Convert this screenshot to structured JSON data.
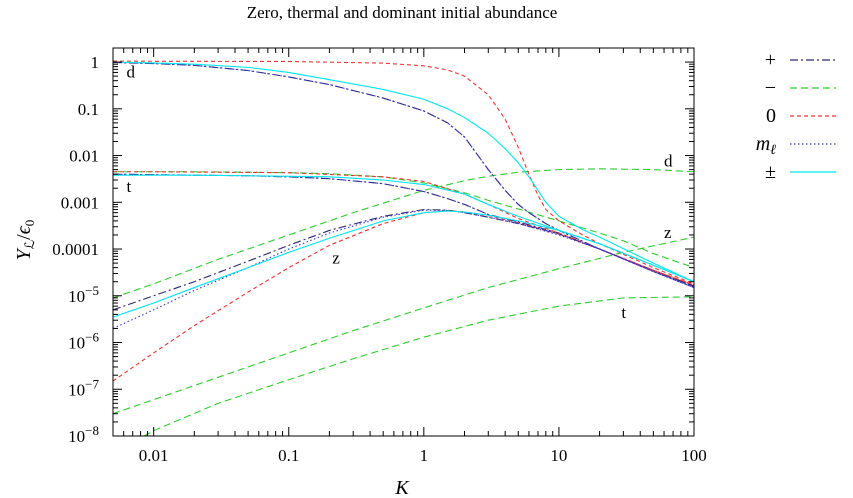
{
  "chart_data": {
    "type": "line",
    "title": "Zero, thermal and dominant initial abundance",
    "xlabel": "K",
    "ylabel": "Y_L / ε_0",
    "xscale": "log",
    "yscale": "log",
    "xlim": [
      0.005,
      100
    ],
    "ylim": [
      1e-08,
      2
    ],
    "xticks": [
      {
        "value": 0.01,
        "label": "0.01"
      },
      {
        "value": 0.1,
        "label": "0.1"
      },
      {
        "value": 1,
        "label": "1"
      },
      {
        "value": 10,
        "label": "10"
      },
      {
        "value": 100,
        "label": "100"
      }
    ],
    "yticks": [
      {
        "value": 1,
        "label": "1",
        "mant": "1",
        "exp": ""
      },
      {
        "value": 0.1,
        "label": "0.1",
        "mant": "0.1",
        "exp": ""
      },
      {
        "value": 0.01,
        "label": "0.01",
        "mant": "0.01",
        "exp": ""
      },
      {
        "value": 0.001,
        "label": "0.001",
        "mant": "0.001",
        "exp": ""
      },
      {
        "value": 0.0001,
        "label": "0.0001",
        "mant": "0.0001",
        "exp": ""
      },
      {
        "value": 1e-05,
        "label": "10-5",
        "mant": "10",
        "exp": "−5"
      },
      {
        "value": 1e-06,
        "label": "10-6",
        "mant": "10",
        "exp": "−6"
      },
      {
        "value": 1e-07,
        "label": "10-7",
        "mant": "10",
        "exp": "−7"
      },
      {
        "value": 1e-08,
        "label": "10-8",
        "mant": "10",
        "exp": "−8"
      }
    ],
    "legend_position": "outside-right",
    "series": [
      {
        "name": "plus-dominant",
        "legend": "+",
        "color": "#2a2a6e",
        "dash": "8,3,2,3",
        "x": [
          0.005,
          0.01,
          0.02,
          0.05,
          0.1,
          0.2,
          0.5,
          1,
          1.5,
          2,
          3,
          4,
          5,
          6,
          8,
          10,
          20,
          50,
          100
        ],
        "y": [
          0.98,
          0.93,
          0.85,
          0.66,
          0.48,
          0.33,
          0.17,
          0.09,
          0.05,
          0.025,
          0.005,
          0.0018,
          0.0009,
          0.0006,
          0.00035,
          0.00025,
          0.0001,
          3.5e-05,
          1.6e-05
        ]
      },
      {
        "name": "plus-thermal",
        "legend": "",
        "color": "#2a2a6e",
        "dash": "8,3,2,3",
        "x": [
          0.005,
          0.01,
          0.02,
          0.05,
          0.1,
          0.2,
          0.5,
          1,
          1.5,
          2,
          3,
          5,
          10,
          20,
          50,
          100
        ],
        "y": [
          0.004,
          0.0039,
          0.0038,
          0.0037,
          0.0035,
          0.0032,
          0.0025,
          0.0017,
          0.0012,
          0.0009,
          0.00055,
          0.00038,
          0.00022,
          0.0001,
          3.5e-05,
          1.6e-05
        ]
      },
      {
        "name": "plus-zero",
        "legend": "",
        "color": "#2a2a6e",
        "dash": "8,3,2,3",
        "x": [
          0.005,
          0.01,
          0.02,
          0.05,
          0.1,
          0.2,
          0.5,
          1,
          1.5,
          2,
          3,
          5,
          10,
          20,
          50,
          100
        ],
        "y": [
          5e-06,
          1e-05,
          2e-05,
          5.5e-05,
          0.00012,
          0.00025,
          0.0005,
          0.0007,
          0.00068,
          0.0006,
          0.00048,
          0.00035,
          0.00021,
          0.0001,
          3.5e-05,
          1.6e-05
        ]
      },
      {
        "name": "minus-thermal",
        "legend": "−",
        "color": "#2ecc2e",
        "dash": "7,4",
        "x": [
          0.005,
          0.01,
          0.02,
          0.05,
          0.1,
          0.2,
          0.5,
          1,
          2,
          3,
          5,
          10,
          20,
          30,
          50,
          100
        ],
        "y": [
          0.0045,
          0.0045,
          0.0045,
          0.0044,
          0.0043,
          0.0041,
          0.0035,
          0.0026,
          0.0016,
          0.0011,
          0.00072,
          0.0004,
          0.00022,
          0.00015,
          8e-05,
          4e-05
        ]
      },
      {
        "name": "minus-dominant",
        "legend": "",
        "color": "#2ecc2e",
        "dash": "7,4",
        "x": [
          0.005,
          0.01,
          0.03,
          0.1,
          0.3,
          1,
          2,
          3,
          5,
          10,
          20,
          50,
          100
        ],
        "y": [
          9e-06,
          1.8e-05,
          6e-05,
          0.0002,
          0.0006,
          0.0018,
          0.0029,
          0.0036,
          0.0044,
          0.005,
          0.0052,
          0.005,
          0.0045
        ]
      },
      {
        "name": "minus-zero",
        "legend": "",
        "color": "#2ecc2e",
        "dash": "7,4",
        "x": [
          0.005,
          0.01,
          0.03,
          0.1,
          0.3,
          1,
          3,
          10,
          30,
          100
        ],
        "y": [
          3e-08,
          6e-08,
          1.8e-07,
          6e-07,
          1.8e-06,
          5.5e-06,
          1.5e-05,
          3.8e-05,
          8.5e-05,
          0.00018
        ]
      },
      {
        "name": "minus-low",
        "legend": "",
        "color": "#2ecc2e",
        "dash": "7,4",
        "x": [
          0.0085,
          0.01,
          0.03,
          0.1,
          0.3,
          1,
          3,
          10,
          30,
          100
        ],
        "y": [
          1e-08,
          1.3e-08,
          5e-08,
          1.6e-07,
          4.5e-07,
          1.3e-06,
          3e-06,
          6e-06,
          9e-06,
          9.5e-06
        ]
      },
      {
        "name": "zero-dominant",
        "legend": "0",
        "color": "#ee3333",
        "dash": "4,3",
        "x": [
          0.005,
          0.01,
          0.1,
          0.5,
          1,
          1.5,
          2,
          3,
          4,
          5,
          6,
          7,
          8,
          10,
          15,
          20,
          50,
          100
        ],
        "y": [
          1.05,
          1.04,
          1.03,
          0.95,
          0.83,
          0.68,
          0.5,
          0.2,
          0.06,
          0.015,
          0.004,
          0.0014,
          0.0007,
          0.0004,
          0.0002,
          0.00013,
          4e-05,
          1.8e-05
        ]
      },
      {
        "name": "zero-thermal",
        "legend": "",
        "color": "#ee3333",
        "dash": "4,3",
        "x": [
          0.005,
          0.01,
          0.1,
          0.5,
          1,
          2,
          3,
          5,
          10,
          20,
          50,
          100
        ],
        "y": [
          0.0045,
          0.0045,
          0.0043,
          0.0035,
          0.0028,
          0.0015,
          0.0009,
          0.00045,
          0.00022,
          0.0001,
          3.5e-05,
          1.7e-05
        ]
      },
      {
        "name": "zero-zero",
        "legend": "",
        "color": "#ee3333",
        "dash": "4,3",
        "x": [
          0.005,
          0.01,
          0.02,
          0.05,
          0.1,
          0.2,
          0.5,
          1,
          1.5,
          2,
          3,
          5,
          10,
          20,
          50,
          100
        ],
        "y": [
          1.5e-07,
          6e-07,
          2.3e-06,
          1.2e-05,
          4e-05,
          0.00012,
          0.00035,
          0.0006,
          0.00066,
          0.00062,
          0.00052,
          0.00037,
          0.00021,
          0.0001,
          3.5e-05,
          1.7e-05
        ]
      },
      {
        "name": "mell-dominant",
        "legend": "m_ℓ",
        "color": "#3333cc",
        "dash": "1.5,2.5",
        "x": [
          0.005,
          0.01,
          0.02,
          0.05,
          0.1,
          0.2,
          0.5,
          1,
          1.5,
          2,
          3,
          4,
          5,
          6,
          8,
          10,
          20,
          50,
          100
        ],
        "y": [
          0.98,
          0.93,
          0.85,
          0.66,
          0.48,
          0.33,
          0.17,
          0.09,
          0.05,
          0.025,
          0.005,
          0.0018,
          0.0009,
          0.0006,
          0.00035,
          0.00025,
          0.0001,
          3.3e-05,
          1.5e-05
        ]
      },
      {
        "name": "mell-thermal",
        "legend": "",
        "color": "#3333cc",
        "dash": "1.5,2.5",
        "x": [
          0.005,
          0.01,
          0.02,
          0.05,
          0.1,
          0.2,
          0.5,
          1,
          1.5,
          2,
          3,
          5,
          10,
          20,
          50,
          100
        ],
        "y": [
          0.004,
          0.0039,
          0.0038,
          0.0037,
          0.0035,
          0.0032,
          0.0025,
          0.0017,
          0.0012,
          0.0009,
          0.00055,
          0.00037,
          0.00021,
          0.0001,
          3.3e-05,
          1.5e-05
        ]
      },
      {
        "name": "mell-zero",
        "legend": "",
        "color": "#3333cc",
        "dash": "1.5,2.5",
        "x": [
          0.005,
          0.01,
          0.02,
          0.05,
          0.1,
          0.2,
          0.5,
          1,
          1.5,
          2,
          3,
          5,
          10,
          20,
          50,
          100
        ],
        "y": [
          2e-06,
          5e-06,
          1.3e-05,
          4e-05,
          0.0001,
          0.00022,
          0.00048,
          0.00068,
          0.00067,
          0.0006,
          0.00048,
          0.00035,
          0.0002,
          0.0001,
          3.3e-05,
          1.5e-05
        ]
      },
      {
        "name": "pm-dominant",
        "legend": "±",
        "color": "#00e5ee",
        "dash": "",
        "x": [
          0.005,
          0.01,
          0.02,
          0.05,
          0.1,
          0.2,
          0.5,
          1,
          1.5,
          2,
          3,
          4,
          5,
          6,
          7,
          8,
          10,
          15,
          20,
          50,
          100
        ],
        "y": [
          1.0,
          0.96,
          0.9,
          0.77,
          0.6,
          0.42,
          0.26,
          0.16,
          0.1,
          0.065,
          0.03,
          0.014,
          0.007,
          0.0035,
          0.0018,
          0.001,
          0.0005,
          0.00026,
          0.00018,
          5e-05,
          2e-05
        ]
      },
      {
        "name": "pm-thermal",
        "legend": "",
        "color": "#00e5ee",
        "dash": "",
        "x": [
          0.005,
          0.01,
          0.02,
          0.05,
          0.1,
          0.2,
          0.5,
          1,
          2,
          3,
          5,
          10,
          20,
          50,
          100
        ],
        "y": [
          0.0038,
          0.0038,
          0.0038,
          0.0037,
          0.0036,
          0.0035,
          0.003,
          0.0024,
          0.0015,
          0.0009,
          0.0005,
          0.00025,
          0.00013,
          4.5e-05,
          2e-05
        ]
      },
      {
        "name": "pm-zero",
        "legend": "",
        "color": "#00e5ee",
        "dash": "",
        "x": [
          0.005,
          0.01,
          0.02,
          0.05,
          0.1,
          0.2,
          0.5,
          1,
          1.5,
          2,
          3,
          5,
          10,
          20,
          50,
          100
        ],
        "y": [
          3.5e-06,
          7e-06,
          1.5e-05,
          4e-05,
          8.5e-05,
          0.00017,
          0.0004,
          0.0006,
          0.00065,
          0.00062,
          0.00053,
          0.0004,
          0.00025,
          0.00013,
          4.5e-05,
          2e-05
        ]
      }
    ],
    "annotations": [
      {
        "text": "d",
        "x": 0.0063,
        "y": 0.6
      },
      {
        "text": "t",
        "x": 0.0063,
        "y": 0.0021
      },
      {
        "text": "z",
        "x": 0.21,
        "y": 6.2e-05
      },
      {
        "text": "d",
        "x": 60,
        "y": 0.0075
      },
      {
        "text": "z",
        "x": 60,
        "y": 0.00022
      },
      {
        "text": "t",
        "x": 29,
        "y": 4.3e-06
      }
    ]
  }
}
